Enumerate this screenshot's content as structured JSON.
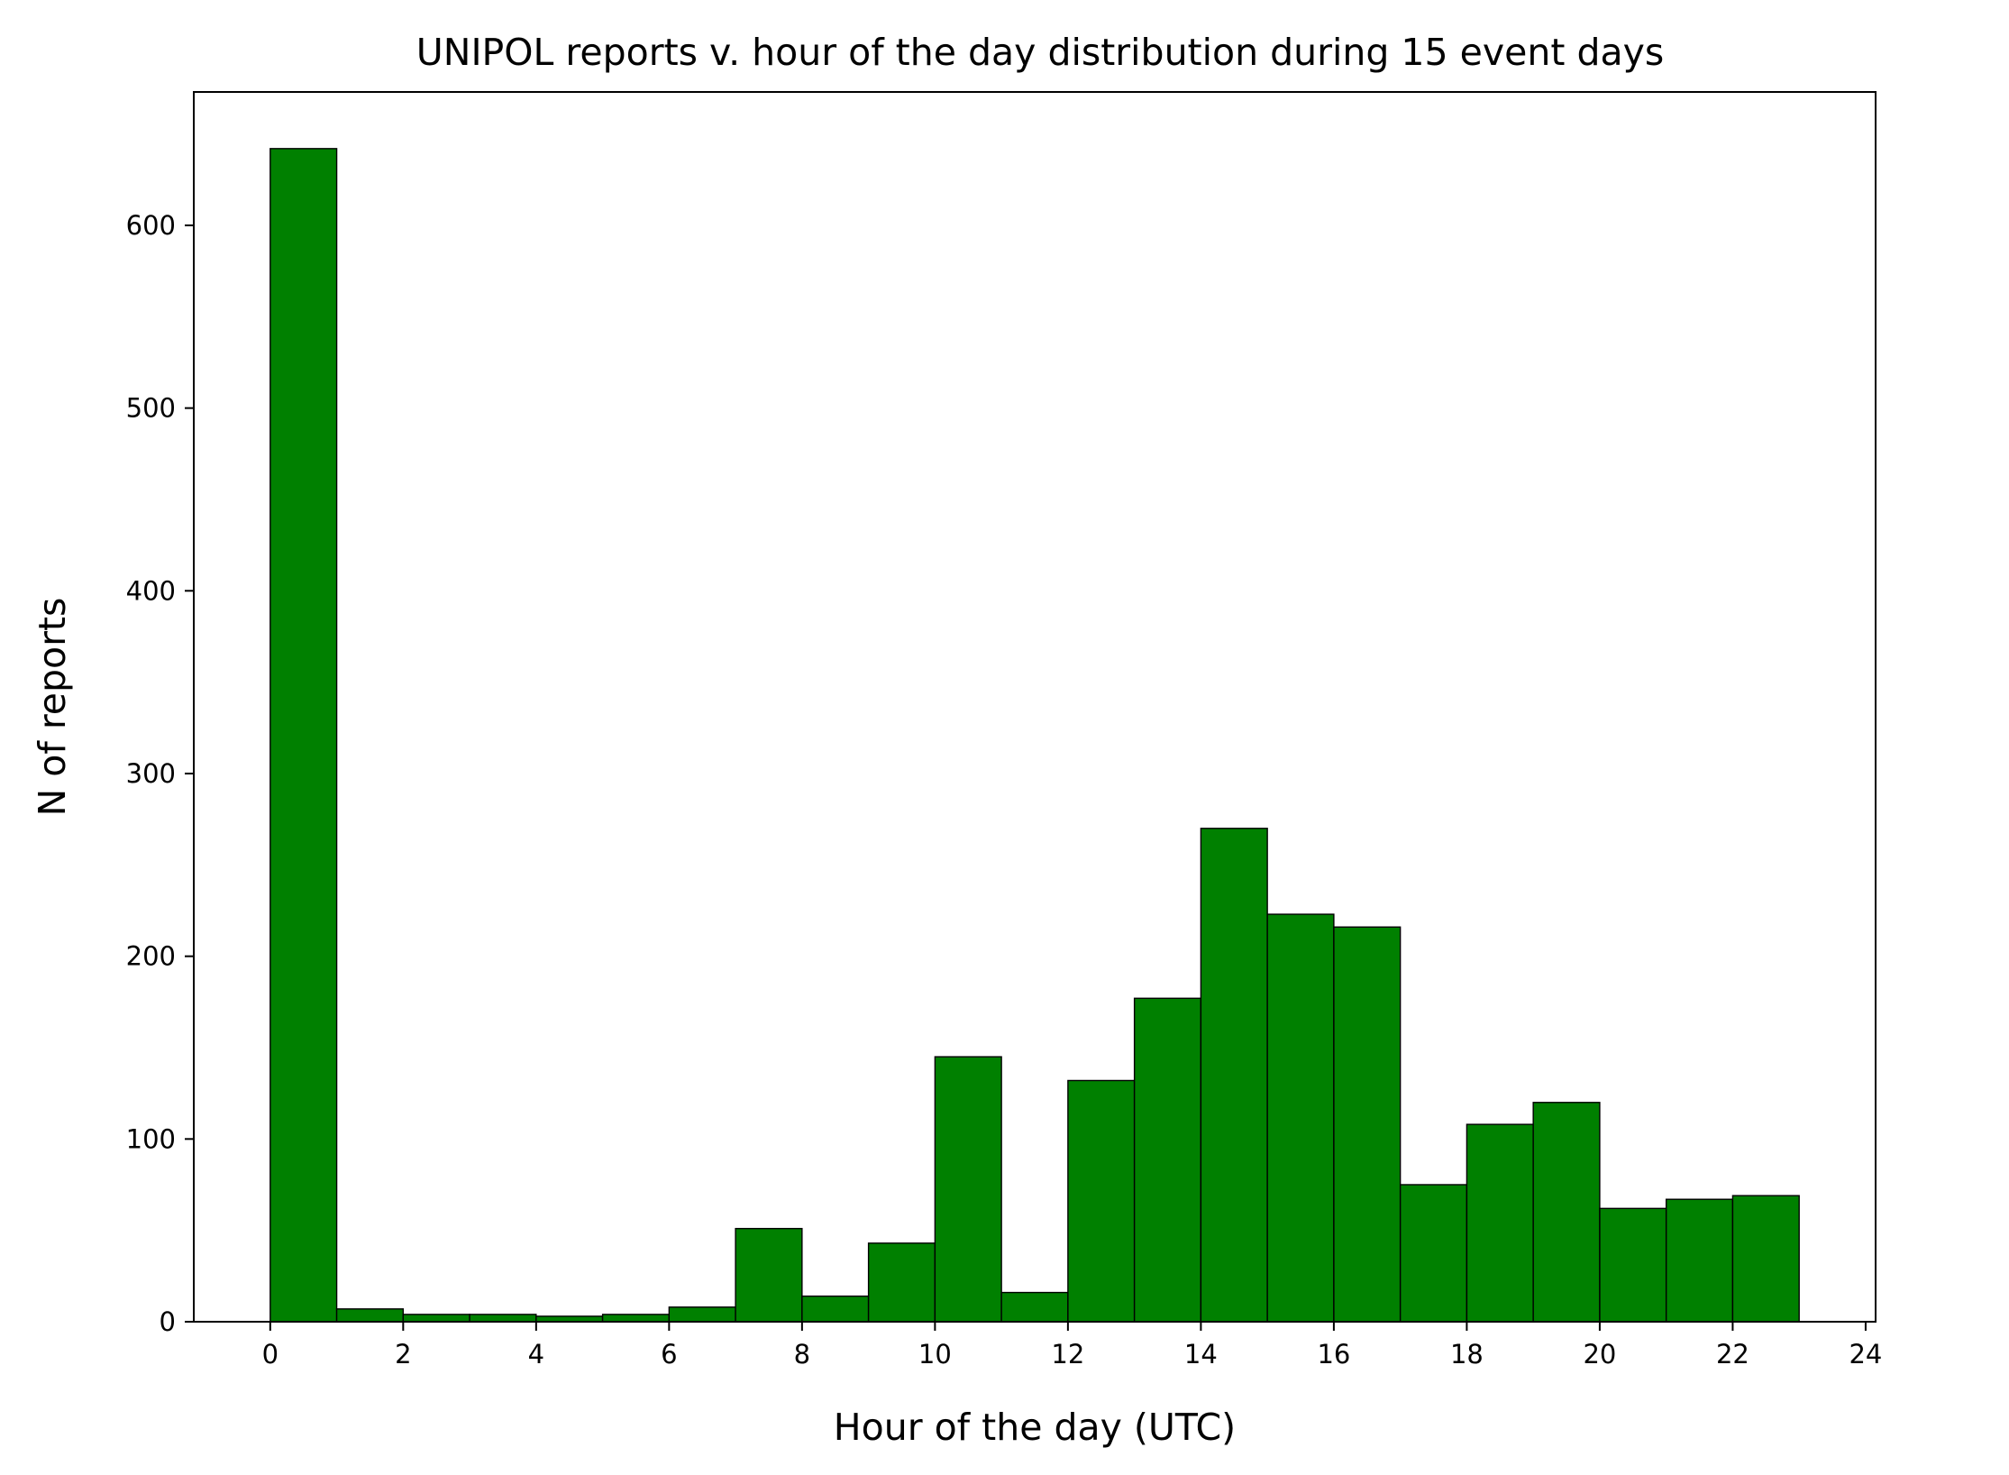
{
  "chart_data": {
    "type": "bar",
    "subtype": "histogram",
    "title": "UNIPOL reports v. hour of the day distribution during 15 event days",
    "xlabel": "Hour of the day (UTC)",
    "ylabel": "N of reports",
    "bar_color": "#008000",
    "edge_color": "#000000",
    "xlim": [
      -1.15,
      24.15
    ],
    "ylim": [
      0,
      673
    ],
    "xticks": [
      0,
      2,
      4,
      6,
      8,
      10,
      12,
      14,
      16,
      18,
      20,
      22,
      24
    ],
    "yticks": [
      0,
      100,
      200,
      300,
      400,
      500,
      600
    ],
    "grid": false,
    "bins": [
      {
        "start": 0,
        "end": 1,
        "count": 642
      },
      {
        "start": 1,
        "end": 2,
        "count": 7
      },
      {
        "start": 2,
        "end": 3,
        "count": 4
      },
      {
        "start": 3,
        "end": 4,
        "count": 4
      },
      {
        "start": 4,
        "end": 5,
        "count": 3
      },
      {
        "start": 5,
        "end": 6,
        "count": 4
      },
      {
        "start": 6,
        "end": 7,
        "count": 8
      },
      {
        "start": 7,
        "end": 8,
        "count": 51
      },
      {
        "start": 8,
        "end": 9,
        "count": 14
      },
      {
        "start": 9,
        "end": 10,
        "count": 43
      },
      {
        "start": 10,
        "end": 11,
        "count": 145
      },
      {
        "start": 11,
        "end": 12,
        "count": 16
      },
      {
        "start": 12,
        "end": 13,
        "count": 132
      },
      {
        "start": 13,
        "end": 14,
        "count": 177
      },
      {
        "start": 14,
        "end": 15,
        "count": 270
      },
      {
        "start": 15,
        "end": 16,
        "count": 223
      },
      {
        "start": 16,
        "end": 17,
        "count": 216
      },
      {
        "start": 17,
        "end": 18,
        "count": 75
      },
      {
        "start": 18,
        "end": 19,
        "count": 108
      },
      {
        "start": 19,
        "end": 20,
        "count": 120
      },
      {
        "start": 20,
        "end": 21,
        "count": 62
      },
      {
        "start": 21,
        "end": 22,
        "count": 67
      },
      {
        "start": 22,
        "end": 23,
        "count": 69
      }
    ]
  }
}
